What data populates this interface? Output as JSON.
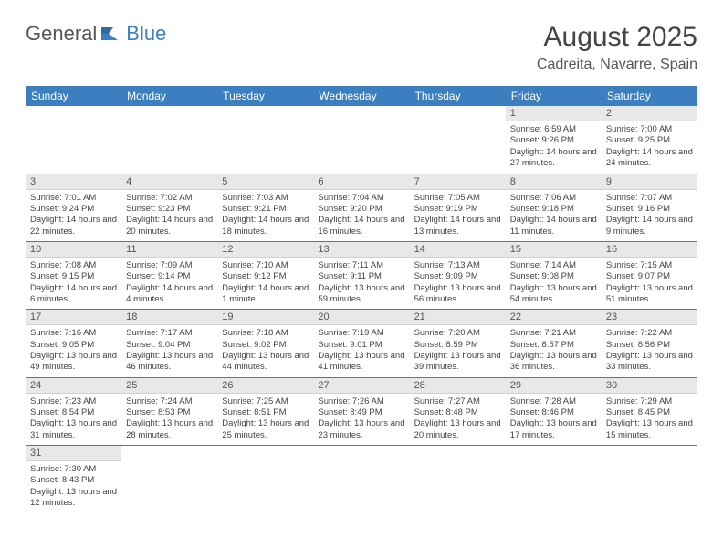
{
  "logo": {
    "text1": "General",
    "text2": "Blue"
  },
  "title": "August 2025",
  "location": "Cadreita, Navarre, Spain",
  "colors": {
    "header_bg": "#3b7fbf",
    "header_fg": "#ffffff",
    "daynum_bg": "#e8e8e8",
    "row_border": "#3b7fbf",
    "text": "#444444",
    "logo_gray": "#555555",
    "logo_blue": "#3b7fbf",
    "background": "#ffffff"
  },
  "typography": {
    "title_size_pt": 24,
    "location_size_pt": 13,
    "header_size_pt": 10,
    "daynum_size_pt": 9,
    "body_size_pt": 8
  },
  "headers": [
    "Sunday",
    "Monday",
    "Tuesday",
    "Wednesday",
    "Thursday",
    "Friday",
    "Saturday"
  ],
  "weeks": [
    [
      null,
      null,
      null,
      null,
      null,
      {
        "n": "1",
        "sr": "6:59 AM",
        "ss": "9:26 PM",
        "dl": "14 hours and 27 minutes."
      },
      {
        "n": "2",
        "sr": "7:00 AM",
        "ss": "9:25 PM",
        "dl": "14 hours and 24 minutes."
      }
    ],
    [
      {
        "n": "3",
        "sr": "7:01 AM",
        "ss": "9:24 PM",
        "dl": "14 hours and 22 minutes."
      },
      {
        "n": "4",
        "sr": "7:02 AM",
        "ss": "9:23 PM",
        "dl": "14 hours and 20 minutes."
      },
      {
        "n": "5",
        "sr": "7:03 AM",
        "ss": "9:21 PM",
        "dl": "14 hours and 18 minutes."
      },
      {
        "n": "6",
        "sr": "7:04 AM",
        "ss": "9:20 PM",
        "dl": "14 hours and 16 minutes."
      },
      {
        "n": "7",
        "sr": "7:05 AM",
        "ss": "9:19 PM",
        "dl": "14 hours and 13 minutes."
      },
      {
        "n": "8",
        "sr": "7:06 AM",
        "ss": "9:18 PM",
        "dl": "14 hours and 11 minutes."
      },
      {
        "n": "9",
        "sr": "7:07 AM",
        "ss": "9:16 PM",
        "dl": "14 hours and 9 minutes."
      }
    ],
    [
      {
        "n": "10",
        "sr": "7:08 AM",
        "ss": "9:15 PM",
        "dl": "14 hours and 6 minutes."
      },
      {
        "n": "11",
        "sr": "7:09 AM",
        "ss": "9:14 PM",
        "dl": "14 hours and 4 minutes."
      },
      {
        "n": "12",
        "sr": "7:10 AM",
        "ss": "9:12 PM",
        "dl": "14 hours and 1 minute."
      },
      {
        "n": "13",
        "sr": "7:11 AM",
        "ss": "9:11 PM",
        "dl": "13 hours and 59 minutes."
      },
      {
        "n": "14",
        "sr": "7:13 AM",
        "ss": "9:09 PM",
        "dl": "13 hours and 56 minutes."
      },
      {
        "n": "15",
        "sr": "7:14 AM",
        "ss": "9:08 PM",
        "dl": "13 hours and 54 minutes."
      },
      {
        "n": "16",
        "sr": "7:15 AM",
        "ss": "9:07 PM",
        "dl": "13 hours and 51 minutes."
      }
    ],
    [
      {
        "n": "17",
        "sr": "7:16 AM",
        "ss": "9:05 PM",
        "dl": "13 hours and 49 minutes."
      },
      {
        "n": "18",
        "sr": "7:17 AM",
        "ss": "9:04 PM",
        "dl": "13 hours and 46 minutes."
      },
      {
        "n": "19",
        "sr": "7:18 AM",
        "ss": "9:02 PM",
        "dl": "13 hours and 44 minutes."
      },
      {
        "n": "20",
        "sr": "7:19 AM",
        "ss": "9:01 PM",
        "dl": "13 hours and 41 minutes."
      },
      {
        "n": "21",
        "sr": "7:20 AM",
        "ss": "8:59 PM",
        "dl": "13 hours and 39 minutes."
      },
      {
        "n": "22",
        "sr": "7:21 AM",
        "ss": "8:57 PM",
        "dl": "13 hours and 36 minutes."
      },
      {
        "n": "23",
        "sr": "7:22 AM",
        "ss": "8:56 PM",
        "dl": "13 hours and 33 minutes."
      }
    ],
    [
      {
        "n": "24",
        "sr": "7:23 AM",
        "ss": "8:54 PM",
        "dl": "13 hours and 31 minutes."
      },
      {
        "n": "25",
        "sr": "7:24 AM",
        "ss": "8:53 PM",
        "dl": "13 hours and 28 minutes."
      },
      {
        "n": "26",
        "sr": "7:25 AM",
        "ss": "8:51 PM",
        "dl": "13 hours and 25 minutes."
      },
      {
        "n": "27",
        "sr": "7:26 AM",
        "ss": "8:49 PM",
        "dl": "13 hours and 23 minutes."
      },
      {
        "n": "28",
        "sr": "7:27 AM",
        "ss": "8:48 PM",
        "dl": "13 hours and 20 minutes."
      },
      {
        "n": "29",
        "sr": "7:28 AM",
        "ss": "8:46 PM",
        "dl": "13 hours and 17 minutes."
      },
      {
        "n": "30",
        "sr": "7:29 AM",
        "ss": "8:45 PM",
        "dl": "13 hours and 15 minutes."
      }
    ],
    [
      {
        "n": "31",
        "sr": "7:30 AM",
        "ss": "8:43 PM",
        "dl": "13 hours and 12 minutes."
      },
      null,
      null,
      null,
      null,
      null,
      null
    ]
  ],
  "labels": {
    "sunrise": "Sunrise:",
    "sunset": "Sunset:",
    "daylight": "Daylight:"
  }
}
